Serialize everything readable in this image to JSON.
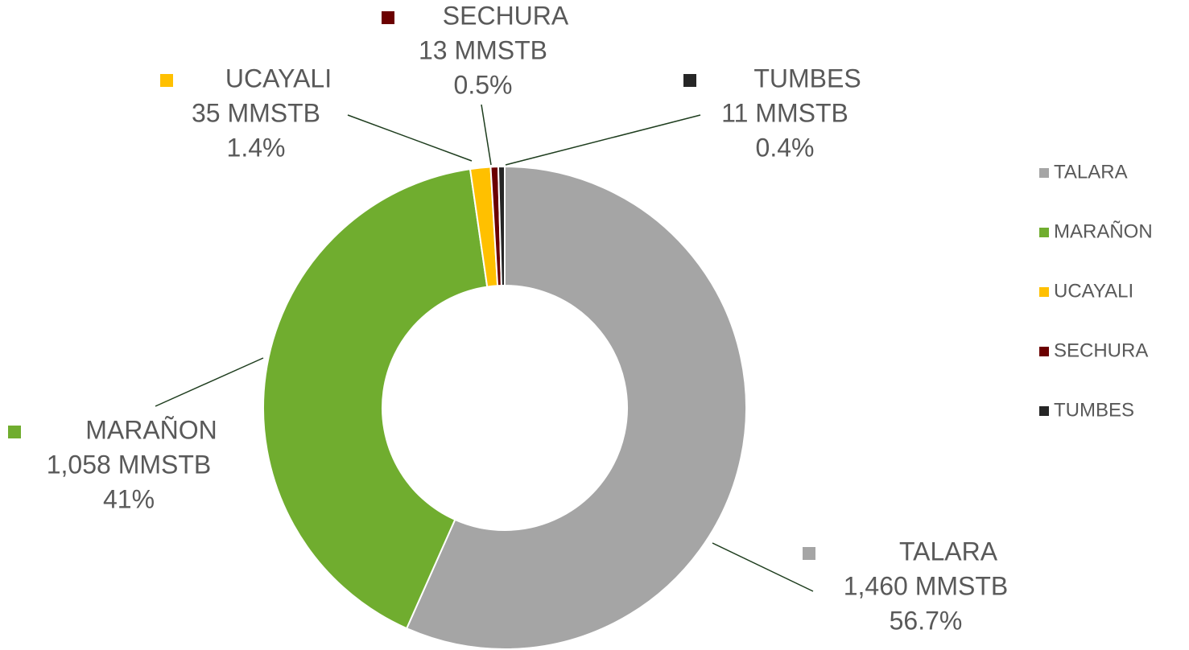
{
  "chart_data": {
    "type": "donut",
    "categories": [
      "TALARA",
      "MARAÑON",
      "UCAYALI",
      "SECHURA",
      "TUMBES"
    ],
    "values": [
      1460,
      1058,
      35,
      13,
      11
    ],
    "value_labels": [
      "1,460 MMSTB",
      "1,058 MMSTB",
      "35 MMSTB",
      "13 MMSTB",
      "11 MMSTB"
    ],
    "percent_labels": [
      "56.7%",
      "41%",
      "1.4%",
      "0.5%",
      "0.4%"
    ],
    "colors": [
      "#a5a5a5",
      "#70ad2f",
      "#ffc000",
      "#6b0000",
      "#262626"
    ],
    "legend": "right"
  }
}
